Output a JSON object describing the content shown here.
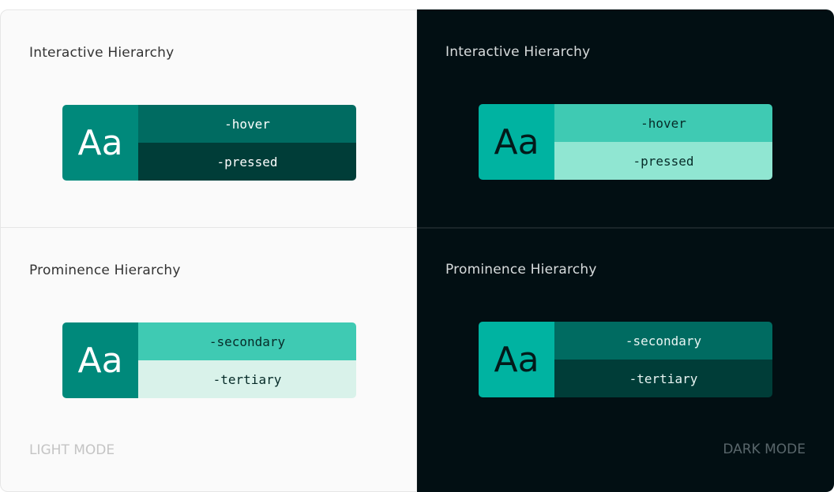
{
  "light": {
    "interactive": {
      "title": "Interactive Hierarchy",
      "sample": "Aa",
      "rows": [
        "-hover",
        "-pressed"
      ],
      "colors": {
        "base": "#00897b",
        "rows": [
          "#006b61",
          "#003d38"
        ],
        "sample_text": "#ffffff",
        "row_text": [
          "#ffffff",
          "#ffffff"
        ]
      }
    },
    "prominence": {
      "title": "Prominence Hierarchy",
      "sample": "Aa",
      "rows": [
        "-secondary",
        "-tertiary"
      ],
      "colors": {
        "base": "#00897b",
        "rows": [
          "#3fcab3",
          "#d9f2ea"
        ],
        "sample_text": "#ffffff",
        "row_text": [
          "#062b28",
          "#062b28"
        ]
      }
    },
    "mode_label": "LIGHT MODE"
  },
  "dark": {
    "interactive": {
      "title": "Interactive Hierarchy",
      "sample": "Aa",
      "rows": [
        "-hover",
        "-pressed"
      ],
      "colors": {
        "base": "#00b3a1",
        "rows": [
          "#3fcab3",
          "#90e6d2"
        ],
        "sample_text": "#031a1a",
        "row_text": [
          "#062b28",
          "#062b28"
        ]
      }
    },
    "prominence": {
      "title": "Prominence Hierarchy",
      "sample": "Aa",
      "rows": [
        "-secondary",
        "-tertiary"
      ],
      "colors": {
        "base": "#00b3a1",
        "rows": [
          "#006b61",
          "#003d38"
        ],
        "sample_text": "#031a1a",
        "row_text": [
          "#e8f5f3",
          "#e8f5f3"
        ]
      }
    },
    "mode_label": "DARK MODE"
  }
}
